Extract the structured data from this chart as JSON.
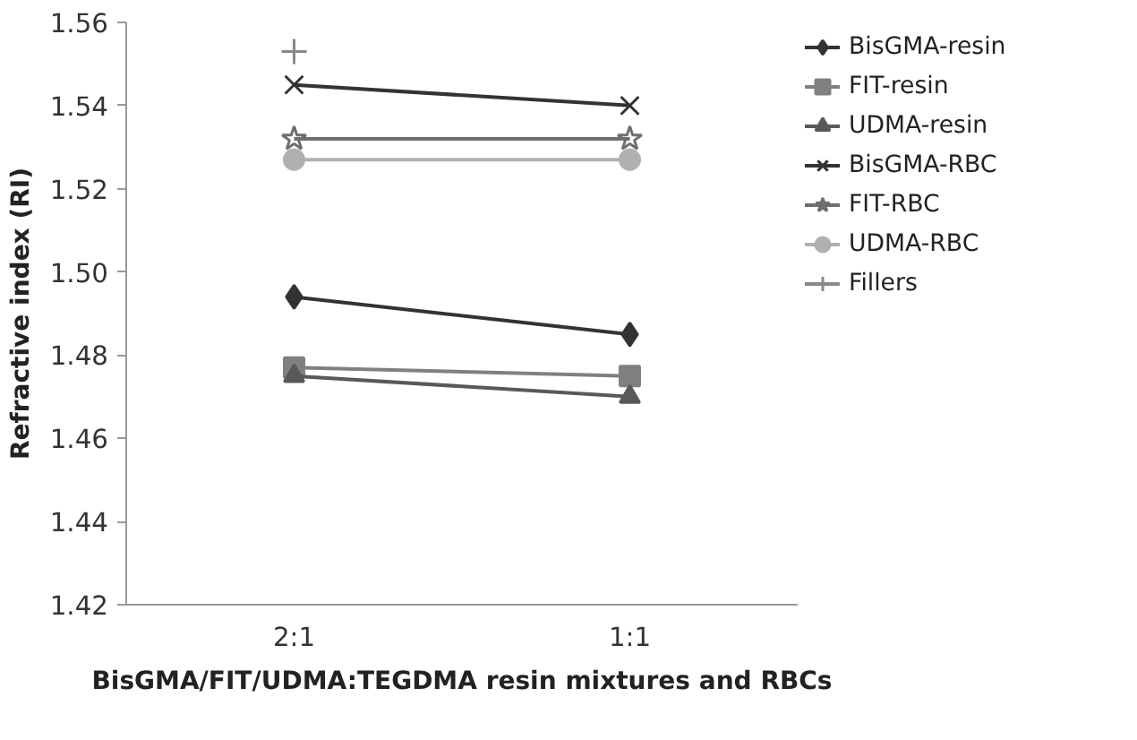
{
  "chart_data": {
    "type": "line",
    "xlabel": "BisGMA/FIT/UDMA:TEGDMA resin mixtures and RBCs",
    "ylabel": "Refractive index (RI)",
    "categories": [
      "2:1",
      "1:1"
    ],
    "ylim": [
      1.42,
      1.56
    ],
    "yticks": [
      1.42,
      1.44,
      1.46,
      1.48,
      {
        "value": 1.5,
        "label": "1.50"
      },
      1.52,
      1.54,
      1.56
    ],
    "grid": false,
    "legend": "right",
    "series": [
      {
        "name": "BisGMA-resin",
        "color": "#333333",
        "marker": "diamond",
        "values": [
          1.494,
          1.485
        ]
      },
      {
        "name": "FIT-resin",
        "color": "#808080",
        "marker": "square",
        "values": [
          1.477,
          1.475
        ]
      },
      {
        "name": "UDMA-resin",
        "color": "#595959",
        "marker": "triangle",
        "values": [
          1.475,
          1.47
        ]
      },
      {
        "name": "BisGMA-RBC",
        "color": "#333333",
        "marker": "x",
        "values": [
          1.545,
          1.54
        ]
      },
      {
        "name": "FIT-RBC",
        "color": "#6e6e6e",
        "marker": "star",
        "values": [
          1.532,
          1.532
        ]
      },
      {
        "name": "UDMA-RBC",
        "color": "#b0b0b0",
        "marker": "circle",
        "values": [
          1.527,
          1.527
        ]
      },
      {
        "name": "Fillers",
        "color": "#888888",
        "marker": "cross",
        "values": [
          1.553,
          null
        ]
      }
    ]
  }
}
